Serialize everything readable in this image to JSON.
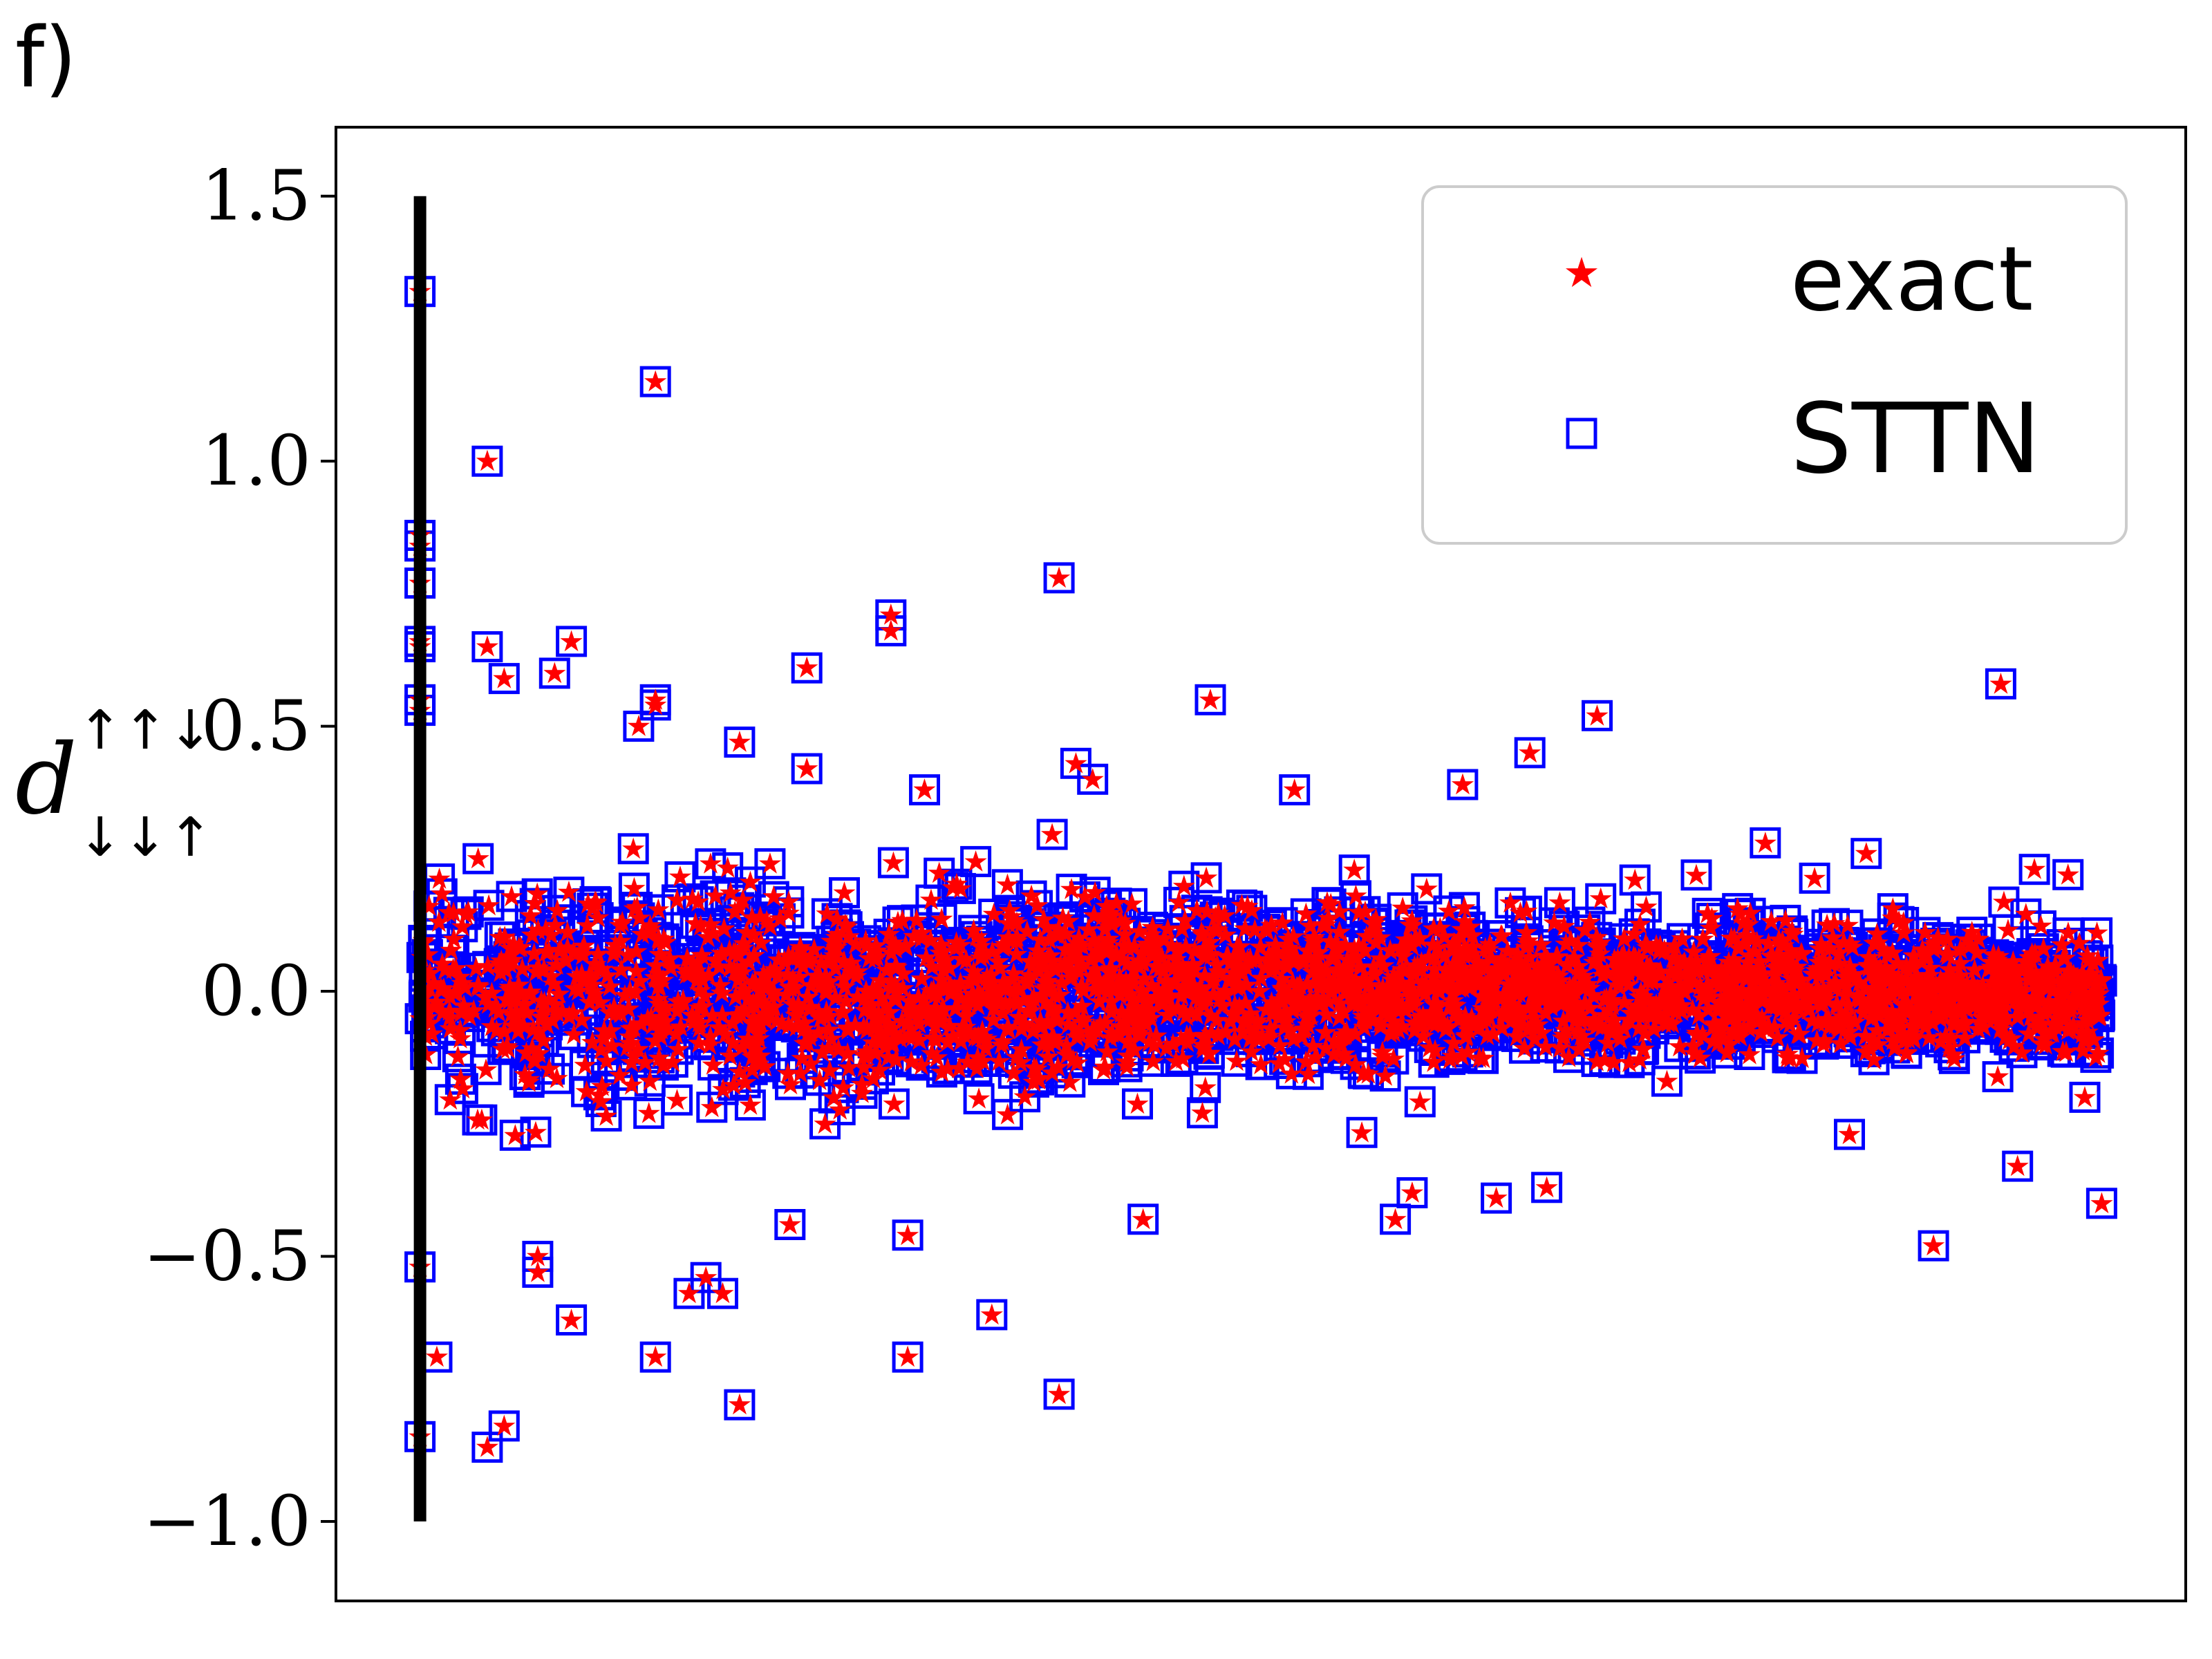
{
  "panel_label": "f)",
  "chart_data": {
    "type": "scatter",
    "title": "",
    "xlabel": "",
    "ylabel_base": "d",
    "ylabel_sup": "↑↑↓",
    "ylabel_sub": "↓↓↑",
    "ylim": [
      -1.15,
      1.63
    ],
    "yticks": [
      1.5,
      1.0,
      0.5,
      0.0,
      -0.5,
      -1.0
    ],
    "ytick_labels": [
      "1.5",
      "1.0",
      "0.5",
      "0.0",
      "−0.5",
      "−1.0"
    ],
    "xlim": [
      -0.05,
      1.05
    ],
    "x_ticks_shown": false,
    "grid": false,
    "legend": {
      "placement": "top-right",
      "entries": [
        {
          "label": "exact",
          "marker": "star",
          "color": "#ff0000"
        },
        {
          "label": "STTN",
          "marker": "open-square",
          "color": "#0000ff"
        }
      ]
    },
    "reference_line": {
      "x": 0.0,
      "y_from": -1.0,
      "y_to": 1.5,
      "color": "#000000"
    },
    "colors": {
      "exact": "#ff0000",
      "sttn": "#0000ff",
      "axes": "#000000",
      "legend_border": "#cccccc"
    },
    "outliers": [
      [
        0.0,
        1.32
      ],
      [
        0.0,
        0.86
      ],
      [
        0.0,
        0.84
      ],
      [
        0.0,
        0.77
      ],
      [
        0.0,
        0.66
      ],
      [
        0.0,
        0.65
      ],
      [
        0.0,
        0.55
      ],
      [
        0.0,
        0.53
      ],
      [
        0.0,
        -0.52
      ],
      [
        0.0,
        -0.84
      ],
      [
        0.01,
        -0.69
      ],
      [
        0.04,
        1.0
      ],
      [
        0.05,
        0.59
      ],
      [
        0.04,
        0.65
      ],
      [
        0.05,
        -0.82
      ],
      [
        0.04,
        -0.86
      ],
      [
        0.07,
        -0.53
      ],
      [
        0.07,
        -0.5
      ],
      [
        0.08,
        0.6
      ],
      [
        0.09,
        0.66
      ],
      [
        0.09,
        -0.62
      ],
      [
        0.14,
        1.15
      ],
      [
        0.14,
        0.55
      ],
      [
        0.13,
        0.5
      ],
      [
        0.14,
        0.54
      ],
      [
        0.14,
        -0.69
      ],
      [
        0.16,
        -0.57
      ],
      [
        0.17,
        -0.54
      ],
      [
        0.18,
        -0.57
      ],
      [
        0.19,
        -0.78
      ],
      [
        0.19,
        0.47
      ],
      [
        0.22,
        -0.44
      ],
      [
        0.23,
        0.61
      ],
      [
        0.23,
        0.42
      ],
      [
        0.28,
        0.71
      ],
      [
        0.28,
        0.68
      ],
      [
        0.29,
        -0.69
      ],
      [
        0.29,
        -0.46
      ],
      [
        0.3,
        0.38
      ],
      [
        0.34,
        -0.61
      ],
      [
        0.38,
        0.78
      ],
      [
        0.38,
        -0.76
      ],
      [
        0.39,
        0.43
      ],
      [
        0.4,
        0.4
      ],
      [
        0.43,
        -0.43
      ],
      [
        0.47,
        0.55
      ],
      [
        0.52,
        0.38
      ],
      [
        0.58,
        -0.43
      ],
      [
        0.59,
        -0.38
      ],
      [
        0.62,
        0.39
      ],
      [
        0.64,
        -0.39
      ],
      [
        0.66,
        0.45
      ],
      [
        0.67,
        -0.37
      ],
      [
        0.7,
        0.52
      ],
      [
        0.8,
        0.28
      ],
      [
        0.85,
        -0.27
      ],
      [
        0.86,
        0.26
      ],
      [
        0.9,
        -0.48
      ],
      [
        0.94,
        0.58
      ],
      [
        0.95,
        -0.33
      ],
      [
        0.96,
        0.23
      ],
      [
        0.98,
        0.22
      ],
      [
        1.0,
        -0.4
      ],
      [
        0.99,
        -0.2
      ]
    ]
  }
}
